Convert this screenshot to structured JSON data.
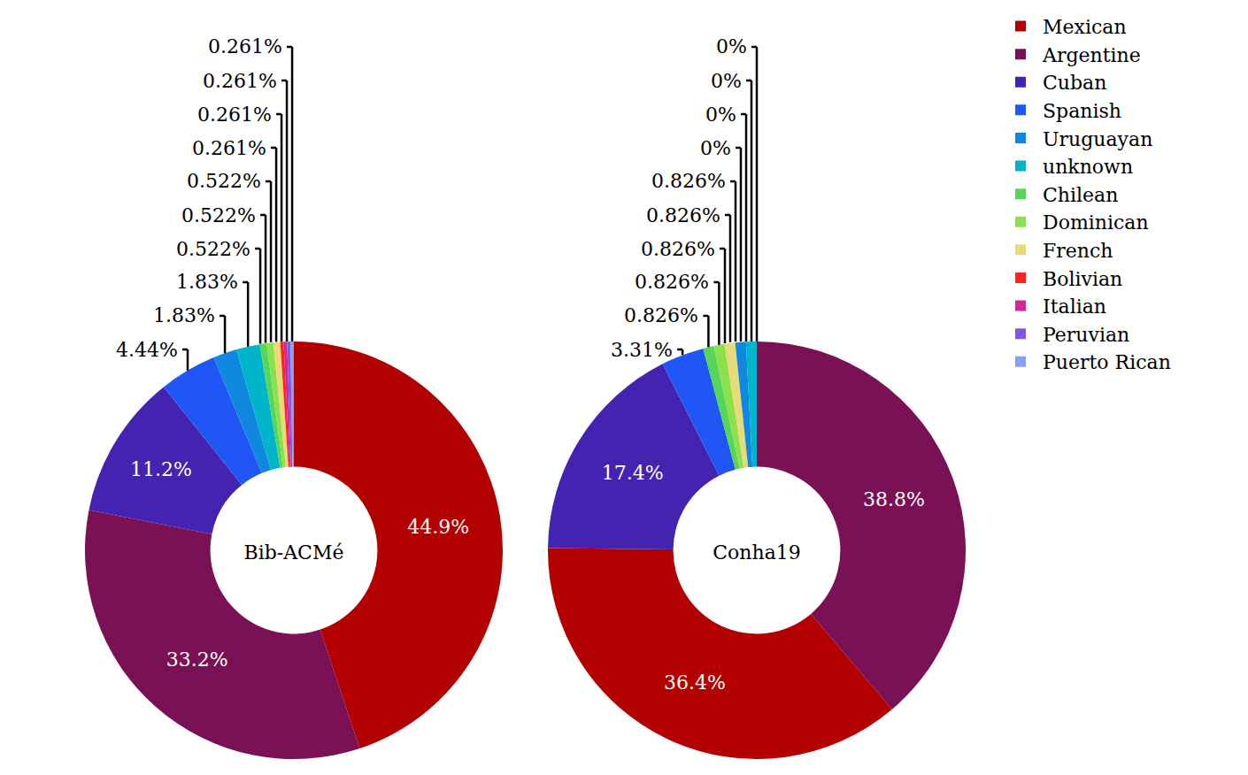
{
  "chart_data": [
    {
      "type": "pie",
      "title": "Bib-ACMé",
      "categories": [
        "Mexican",
        "Argentine",
        "Cuban",
        "Spanish",
        "Uruguayan",
        "unknown",
        "Chilean",
        "Dominican",
        "French",
        "Bolivian",
        "Italian",
        "Peruvian",
        "Puerto Rican"
      ],
      "values": [
        44.9,
        33.2,
        11.2,
        4.44,
        1.83,
        1.83,
        0.522,
        0.522,
        0.522,
        0.261,
        0.261,
        0.261,
        0.261
      ],
      "value_labels": [
        "44.9%",
        "33.2%",
        "11.2%",
        "4.44%",
        "1.83%",
        "1.83%",
        "0.522%",
        "0.522%",
        "0.522%",
        "0.261%",
        "0.261%",
        "0.261%",
        "0.261%"
      ],
      "colors": [
        "#b30000",
        "#7a1155",
        "#4423b0",
        "#1f56f5",
        "#1088e0",
        "#00b5c9",
        "#55d55a",
        "#8be04e",
        "#e8da78",
        "#ff2323",
        "#d42598",
        "#7f57e0",
        "#86a0f8"
      ],
      "data_labels": true,
      "legend": "upper right"
    },
    {
      "type": "pie",
      "title": "Conha19",
      "categories": [
        "Argentine",
        "Mexican",
        "Cuban",
        "Spanish",
        "Chilean",
        "Dominican",
        "French",
        "Uruguayan",
        "unknown",
        "Bolivian",
        "Italian",
        "Peruvian",
        "Puerto Rican"
      ],
      "values": [
        38.8,
        36.4,
        17.4,
        3.31,
        0.826,
        0.826,
        0.826,
        0.826,
        0.826,
        0,
        0,
        0,
        0
      ],
      "value_labels": [
        "38.8%",
        "36.4%",
        "17.4%",
        "3.31%",
        "0.826%",
        "0.826%",
        "0.826%",
        "0.826%",
        "0.826%",
        "0%",
        "0%",
        "0%",
        "0%"
      ],
      "colors": [
        "#7a1155",
        "#b30000",
        "#4423b0",
        "#1f56f5",
        "#55d55a",
        "#8be04e",
        "#e8da78",
        "#1088e0",
        "#00b5c9",
        "#ff2323",
        "#d42598",
        "#7f57e0",
        "#86a0f8"
      ],
      "data_labels": true,
      "legend": "upper right"
    }
  ]
}
